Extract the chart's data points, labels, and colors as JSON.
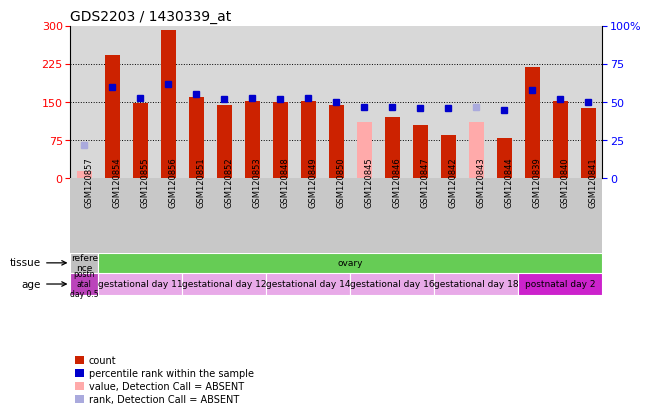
{
  "title": "GDS2203 / 1430339_at",
  "samples": [
    "GSM120857",
    "GSM120854",
    "GSM120855",
    "GSM120856",
    "GSM120851",
    "GSM120852",
    "GSM120853",
    "GSM120848",
    "GSM120849",
    "GSM120850",
    "GSM120845",
    "GSM120846",
    "GSM120847",
    "GSM120842",
    "GSM120843",
    "GSM120844",
    "GSM120839",
    "GSM120840",
    "GSM120841"
  ],
  "count_values": [
    15,
    243,
    148,
    292,
    160,
    144,
    152,
    150,
    152,
    145,
    110,
    120,
    105,
    85,
    110,
    80,
    220,
    152,
    138
  ],
  "count_absent": [
    true,
    false,
    false,
    false,
    false,
    false,
    false,
    false,
    false,
    false,
    true,
    false,
    false,
    false,
    true,
    false,
    false,
    false,
    false
  ],
  "rank_values": [
    22,
    60,
    53,
    62,
    55,
    52,
    53,
    52,
    53,
    50,
    47,
    47,
    46,
    46,
    47,
    45,
    58,
    52,
    50
  ],
  "rank_absent": [
    true,
    false,
    false,
    false,
    false,
    false,
    false,
    false,
    false,
    false,
    false,
    false,
    false,
    false,
    true,
    false,
    false,
    false,
    false
  ],
  "ylim_left": [
    0,
    300
  ],
  "ylim_right": [
    0,
    100
  ],
  "yticks_left": [
    0,
    75,
    150,
    225,
    300
  ],
  "yticks_right": [
    0,
    25,
    50,
    75,
    100
  ],
  "bar_width": 0.55,
  "bar_color_present": "#cc2200",
  "bar_color_absent": "#ffaaaa",
  "rank_color_present": "#0000cc",
  "rank_color_absent": "#aaaadd",
  "plot_bg_color": "#d8d8d8",
  "label_bg_color": "#c8c8c8",
  "tissue_groups": [
    {
      "label": "refere\nnce",
      "start": 0,
      "end": 1,
      "color": "#c0c0c0"
    },
    {
      "label": "ovary",
      "start": 1,
      "end": 19,
      "color": "#66cc55"
    }
  ],
  "age_groups": [
    {
      "label": "postn\natal\nday 0.5",
      "start": 0,
      "end": 1,
      "color": "#bb44bb"
    },
    {
      "label": "gestational day 11",
      "start": 1,
      "end": 4,
      "color": "#e8aae8"
    },
    {
      "label": "gestational day 12",
      "start": 4,
      "end": 7,
      "color": "#e8aae8"
    },
    {
      "label": "gestational day 14",
      "start": 7,
      "end": 10,
      "color": "#e8aae8"
    },
    {
      "label": "gestational day 16",
      "start": 10,
      "end": 13,
      "color": "#e8aae8"
    },
    {
      "label": "gestational day 18",
      "start": 13,
      "end": 16,
      "color": "#e8aae8"
    },
    {
      "label": "postnatal day 2",
      "start": 16,
      "end": 19,
      "color": "#cc22cc"
    }
  ],
  "legend_items": [
    {
      "color": "#cc2200",
      "label": "count"
    },
    {
      "color": "#0000cc",
      "label": "percentile rank within the sample"
    },
    {
      "color": "#ffaaaa",
      "label": "value, Detection Call = ABSENT"
    },
    {
      "color": "#aaaadd",
      "label": "rank, Detection Call = ABSENT"
    }
  ]
}
